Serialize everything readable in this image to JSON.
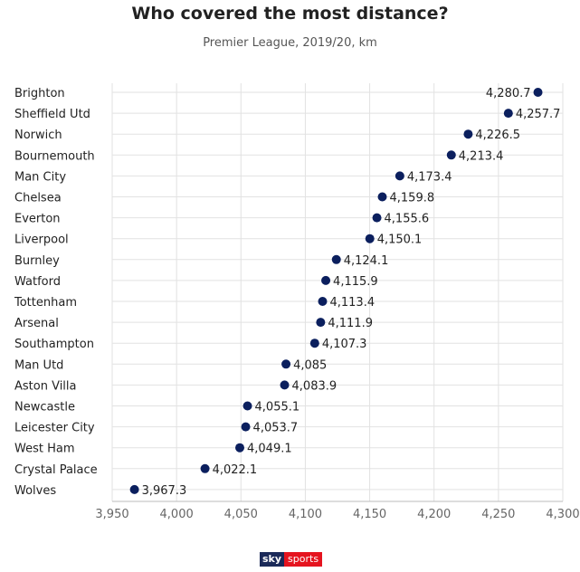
{
  "title": "Who covered the most distance?",
  "subtitle": "Premier League, 2019/20, km",
  "logo": {
    "part1": "sky",
    "part2": "sports"
  },
  "colors": {
    "dot": "#0b1f5e",
    "grid": "#e2e2e2",
    "text": "#222222",
    "tick": "#666666"
  },
  "chart_data": {
    "type": "scatter",
    "title": "Who covered the most distance?",
    "subtitle": "Premier League, 2019/20, km",
    "xlim": [
      3950,
      4300
    ],
    "xticks": [
      3950,
      4000,
      4050,
      4100,
      4150,
      4200,
      4250,
      4300
    ],
    "xtick_labels": [
      "3,950",
      "4,000",
      "4,050",
      "4,100",
      "4,150",
      "4,200",
      "4,250",
      "4,300"
    ],
    "grid": true,
    "categories": [
      "Brighton",
      "Sheffield Utd",
      "Norwich",
      "Bournemouth",
      "Man City",
      "Chelsea",
      "Everton",
      "Liverpool",
      "Burnley",
      "Watford",
      "Tottenham",
      "Arsenal",
      "Southampton",
      "Man Utd",
      "Aston Villa",
      "Newcastle",
      "Leicester City",
      "West Ham",
      "Crystal Palace",
      "Wolves"
    ],
    "values": [
      4280.7,
      4257.7,
      4226.5,
      4213.4,
      4173.4,
      4159.8,
      4155.6,
      4150.1,
      4124.1,
      4115.9,
      4113.4,
      4111.9,
      4107.3,
      4085,
      4083.9,
      4055.1,
      4053.7,
      4049.1,
      4022.1,
      3967.3
    ],
    "value_labels": [
      "4,280.7",
      "4,257.7",
      "4,226.5",
      "4,213.4",
      "4,173.4",
      "4,159.8",
      "4,155.6",
      "4,150.1",
      "4,124.1",
      "4,115.9",
      "4,113.4",
      "4,111.9",
      "4,107.3",
      "4,085",
      "4,083.9",
      "4,055.1",
      "4,053.7",
      "4,049.1",
      "4,022.1",
      "3,967.3"
    ]
  }
}
